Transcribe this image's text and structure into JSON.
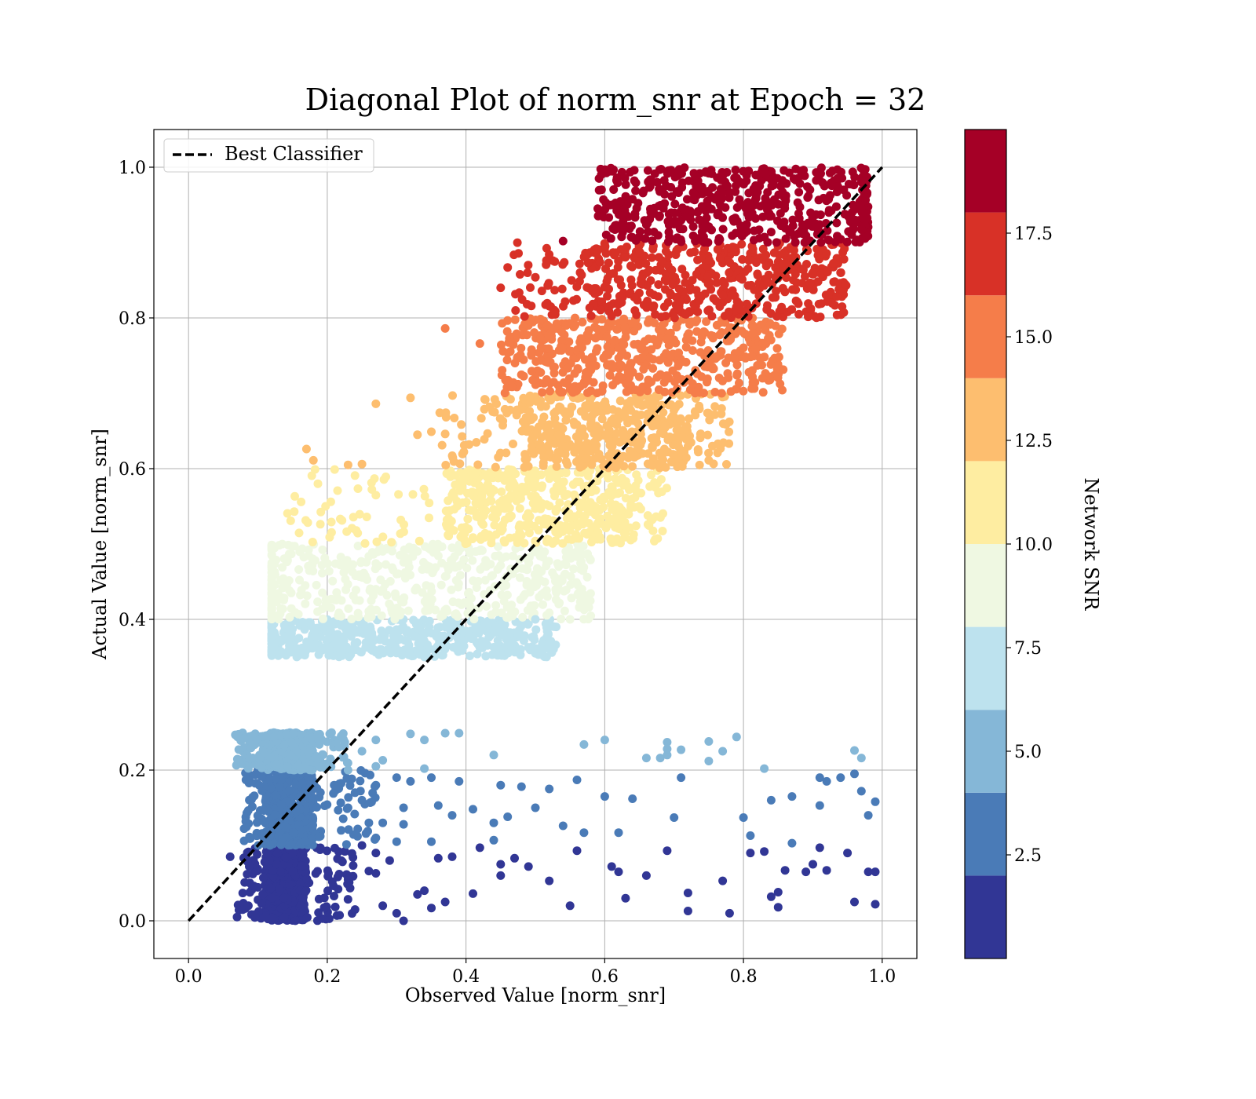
{
  "chart_data": {
    "type": "scatter",
    "title": "Diagonal Plot of norm_snr at Epoch = 32",
    "xlabel": "Observed Value [norm_snr]",
    "ylabel": "Actual Value [norm_snr]",
    "xlim": [
      -0.05,
      1.05
    ],
    "ylim": [
      -0.05,
      1.05
    ],
    "x_ticks": [
      0.0,
      0.2,
      0.4,
      0.6,
      0.8,
      1.0
    ],
    "y_ticks": [
      0.0,
      0.2,
      0.4,
      0.6,
      0.8,
      1.0
    ],
    "x_tick_labels": [
      "0.0",
      "0.2",
      "0.4",
      "0.6",
      "0.8",
      "1.0"
    ],
    "y_tick_labels": [
      "0.0",
      "0.2",
      "0.4",
      "0.6",
      "0.8",
      "1.0"
    ],
    "grid": true,
    "legend": {
      "placement": "upper-left",
      "entries": [
        "Best Classifier"
      ]
    },
    "reference_line": {
      "name": "Best Classifier",
      "x": [
        0.0,
        1.0
      ],
      "y": [
        0.0,
        1.0
      ],
      "style": "dashed",
      "color": "#000000"
    },
    "colorbar": {
      "label": "Network SNR",
      "range": [
        0,
        20
      ],
      "boundaries": [
        0,
        2,
        4,
        6,
        8,
        10,
        12,
        14,
        16,
        18,
        20
      ],
      "colors": [
        "#313695",
        "#4a7bb7",
        "#85b7d7",
        "#bde2ee",
        "#eff8e2",
        "#feeda1",
        "#fdbe6f",
        "#f57d4a",
        "#d83127",
        "#a50026"
      ],
      "ticks": [
        2.5,
        5.0,
        7.5,
        10.0,
        12.5,
        15.0,
        17.5
      ],
      "tick_labels": [
        "2.5",
        "5.0",
        "7.5",
        "10.0",
        "12.5",
        "15.0",
        "17.5"
      ]
    },
    "bands": [
      {
        "y_range": [
          0.0,
          0.1
        ],
        "x_core": [
          0.11,
          0.17
        ],
        "x_spread": [
          0.07,
          0.24
        ],
        "color": "#313695"
      },
      {
        "y_range": [
          0.1,
          0.2
        ],
        "x_core": [
          0.11,
          0.18
        ],
        "x_spread": [
          0.08,
          0.27
        ],
        "color": "#4a7bb7"
      },
      {
        "y_range": [
          0.2,
          0.25
        ],
        "x_core": [
          0.11,
          0.18
        ],
        "x_spread": [
          0.065,
          0.23
        ],
        "color": "#85b7d7"
      },
      {
        "y_range": [
          0.35,
          0.4
        ],
        "x_core": [
          0.12,
          0.48
        ],
        "x_spread": [
          0.12,
          0.53
        ],
        "color": "#bde2ee"
      },
      {
        "y_range": [
          0.4,
          0.5
        ],
        "x_core": [
          0.12,
          0.56
        ],
        "x_spread": [
          0.12,
          0.58
        ],
        "color": "#eff8e2"
      },
      {
        "y_range": [
          0.5,
          0.6
        ],
        "x_core": [
          0.37,
          0.64
        ],
        "x_spread": [
          0.13,
          0.69
        ],
        "color": "#feeda1"
      },
      {
        "y_range": [
          0.6,
          0.7
        ],
        "x_core": [
          0.48,
          0.72
        ],
        "x_spread": [
          0.36,
          0.78
        ],
        "color": "#fdbe6f"
      },
      {
        "y_range": [
          0.7,
          0.8
        ],
        "x_core": [
          0.5,
          0.82
        ],
        "x_spread": [
          0.45,
          0.86
        ],
        "color": "#f57d4a"
      },
      {
        "y_range": [
          0.8,
          0.9
        ],
        "x_core": [
          0.58,
          0.92
        ],
        "x_spread": [
          0.46,
          0.95
        ],
        "color": "#d83127"
      },
      {
        "y_range": [
          0.9,
          1.0
        ],
        "x_core": [
          0.63,
          0.97
        ],
        "x_spread": [
          0.59,
          0.98
        ],
        "color": "#a50026"
      }
    ],
    "scattered_points": [
      {
        "x": 0.3,
        "y": 0.19,
        "color": "#4a7bb7"
      },
      {
        "x": 0.32,
        "y": 0.185,
        "color": "#4a7bb7"
      },
      {
        "x": 0.35,
        "y": 0.19,
        "color": "#4a7bb7"
      },
      {
        "x": 0.39,
        "y": 0.185,
        "color": "#4a7bb7"
      },
      {
        "x": 0.45,
        "y": 0.18,
        "color": "#4a7bb7"
      },
      {
        "x": 0.48,
        "y": 0.178,
        "color": "#4a7bb7"
      },
      {
        "x": 0.52,
        "y": 0.175,
        "color": "#4a7bb7"
      },
      {
        "x": 0.56,
        "y": 0.187,
        "color": "#4a7bb7"
      },
      {
        "x": 0.6,
        "y": 0.165,
        "color": "#4a7bb7"
      },
      {
        "x": 0.64,
        "y": 0.162,
        "color": "#4a7bb7"
      },
      {
        "x": 0.71,
        "y": 0.19,
        "color": "#4a7bb7"
      },
      {
        "x": 0.84,
        "y": 0.16,
        "color": "#4a7bb7"
      },
      {
        "x": 0.87,
        "y": 0.165,
        "color": "#4a7bb7"
      },
      {
        "x": 0.91,
        "y": 0.19,
        "color": "#4a7bb7"
      },
      {
        "x": 0.92,
        "y": 0.185,
        "color": "#4a7bb7"
      },
      {
        "x": 0.94,
        "y": 0.19,
        "color": "#4a7bb7"
      },
      {
        "x": 0.96,
        "y": 0.195,
        "color": "#4a7bb7"
      },
      {
        "x": 0.97,
        "y": 0.172,
        "color": "#4a7bb7"
      },
      {
        "x": 0.99,
        "y": 0.158,
        "color": "#4a7bb7"
      },
      {
        "x": 0.98,
        "y": 0.14,
        "color": "#4a7bb7"
      },
      {
        "x": 0.91,
        "y": 0.153,
        "color": "#4a7bb7"
      },
      {
        "x": 0.8,
        "y": 0.137,
        "color": "#4a7bb7"
      },
      {
        "x": 0.81,
        "y": 0.113,
        "color": "#4a7bb7"
      },
      {
        "x": 0.87,
        "y": 0.103,
        "color": "#4a7bb7"
      },
      {
        "x": 0.7,
        "y": 0.137,
        "color": "#4a7bb7"
      },
      {
        "x": 0.62,
        "y": 0.117,
        "color": "#4a7bb7"
      },
      {
        "x": 0.57,
        "y": 0.117,
        "color": "#4a7bb7"
      },
      {
        "x": 0.54,
        "y": 0.126,
        "color": "#4a7bb7"
      },
      {
        "x": 0.5,
        "y": 0.15,
        "color": "#4a7bb7"
      },
      {
        "x": 0.46,
        "y": 0.138,
        "color": "#4a7bb7"
      },
      {
        "x": 0.44,
        "y": 0.13,
        "color": "#4a7bb7"
      },
      {
        "x": 0.44,
        "y": 0.107,
        "color": "#4a7bb7"
      },
      {
        "x": 0.41,
        "y": 0.148,
        "color": "#4a7bb7"
      },
      {
        "x": 0.38,
        "y": 0.14,
        "color": "#4a7bb7"
      },
      {
        "x": 0.36,
        "y": 0.153,
        "color": "#4a7bb7"
      },
      {
        "x": 0.35,
        "y": 0.105,
        "color": "#4a7bb7"
      },
      {
        "x": 0.31,
        "y": 0.15,
        "color": "#4a7bb7"
      },
      {
        "x": 0.31,
        "y": 0.128,
        "color": "#4a7bb7"
      },
      {
        "x": 0.3,
        "y": 0.105,
        "color": "#4a7bb7"
      },
      {
        "x": 0.28,
        "y": 0.13,
        "color": "#4a7bb7"
      },
      {
        "x": 0.26,
        "y": 0.13,
        "color": "#4a7bb7"
      },
      {
        "x": 0.25,
        "y": 0.16,
        "color": "#4a7bb7"
      },
      {
        "x": 0.24,
        "y": 0.17,
        "color": "#4a7bb7"
      },
      {
        "x": 0.23,
        "y": 0.15,
        "color": "#4a7bb7"
      },
      {
        "x": 0.22,
        "y": 0.12,
        "color": "#4a7bb7"
      },
      {
        "x": 0.21,
        "y": 0.18,
        "color": "#4a7bb7"
      },
      {
        "x": 0.27,
        "y": 0.18,
        "color": "#4a7bb7"
      },
      {
        "x": 0.27,
        "y": 0.11,
        "color": "#4a7bb7"
      },
      {
        "x": 0.36,
        "y": 0.083,
        "color": "#313695"
      },
      {
        "x": 0.38,
        "y": 0.085,
        "color": "#313695"
      },
      {
        "x": 0.42,
        "y": 0.097,
        "color": "#313695"
      },
      {
        "x": 0.45,
        "y": 0.075,
        "color": "#313695"
      },
      {
        "x": 0.45,
        "y": 0.06,
        "color": "#313695"
      },
      {
        "x": 0.47,
        "y": 0.083,
        "color": "#313695"
      },
      {
        "x": 0.49,
        "y": 0.072,
        "color": "#313695"
      },
      {
        "x": 0.52,
        "y": 0.053,
        "color": "#313695"
      },
      {
        "x": 0.56,
        "y": 0.093,
        "color": "#313695"
      },
      {
        "x": 0.55,
        "y": 0.02,
        "color": "#313695"
      },
      {
        "x": 0.61,
        "y": 0.072,
        "color": "#313695"
      },
      {
        "x": 0.62,
        "y": 0.065,
        "color": "#313695"
      },
      {
        "x": 0.63,
        "y": 0.03,
        "color": "#313695"
      },
      {
        "x": 0.66,
        "y": 0.06,
        "color": "#313695"
      },
      {
        "x": 0.69,
        "y": 0.093,
        "color": "#313695"
      },
      {
        "x": 0.72,
        "y": 0.037,
        "color": "#313695"
      },
      {
        "x": 0.72,
        "y": 0.013,
        "color": "#313695"
      },
      {
        "x": 0.77,
        "y": 0.053,
        "color": "#313695"
      },
      {
        "x": 0.78,
        "y": 0.01,
        "color": "#313695"
      },
      {
        "x": 0.81,
        "y": 0.09,
        "color": "#313695"
      },
      {
        "x": 0.83,
        "y": 0.092,
        "color": "#313695"
      },
      {
        "x": 0.84,
        "y": 0.032,
        "color": "#313695"
      },
      {
        "x": 0.85,
        "y": 0.038,
        "color": "#313695"
      },
      {
        "x": 0.85,
        "y": 0.018,
        "color": "#313695"
      },
      {
        "x": 0.86,
        "y": 0.067,
        "color": "#313695"
      },
      {
        "x": 0.89,
        "y": 0.065,
        "color": "#313695"
      },
      {
        "x": 0.9,
        "y": 0.075,
        "color": "#313695"
      },
      {
        "x": 0.91,
        "y": 0.097,
        "color": "#313695"
      },
      {
        "x": 0.92,
        "y": 0.067,
        "color": "#313695"
      },
      {
        "x": 0.95,
        "y": 0.09,
        "color": "#313695"
      },
      {
        "x": 0.96,
        "y": 0.025,
        "color": "#313695"
      },
      {
        "x": 0.98,
        "y": 0.065,
        "color": "#313695"
      },
      {
        "x": 0.99,
        "y": 0.065,
        "color": "#313695"
      },
      {
        "x": 0.99,
        "y": 0.022,
        "color": "#313695"
      },
      {
        "x": 0.41,
        "y": 0.036,
        "color": "#313695"
      },
      {
        "x": 0.37,
        "y": 0.025,
        "color": "#313695"
      },
      {
        "x": 0.35,
        "y": 0.017,
        "color": "#313695"
      },
      {
        "x": 0.34,
        "y": 0.04,
        "color": "#313695"
      },
      {
        "x": 0.33,
        "y": 0.035,
        "color": "#313695"
      },
      {
        "x": 0.31,
        "y": 0.0,
        "color": "#313695"
      },
      {
        "x": 0.3,
        "y": 0.01,
        "color": "#313695"
      },
      {
        "x": 0.29,
        "y": 0.08,
        "color": "#313695"
      },
      {
        "x": 0.28,
        "y": 0.02,
        "color": "#313695"
      },
      {
        "x": 0.27,
        "y": 0.063,
        "color": "#313695"
      },
      {
        "x": 0.27,
        "y": 0.09,
        "color": "#313695"
      },
      {
        "x": 0.26,
        "y": 0.066,
        "color": "#313695"
      },
      {
        "x": 0.25,
        "y": 0.1,
        "color": "#313695"
      },
      {
        "x": 0.24,
        "y": 0.015,
        "color": "#313695"
      },
      {
        "x": 0.23,
        "y": 0.055,
        "color": "#313695"
      },
      {
        "x": 0.22,
        "y": 0.08,
        "color": "#313695"
      },
      {
        "x": 0.06,
        "y": 0.085,
        "color": "#313695"
      },
      {
        "x": 0.07,
        "y": 0.005,
        "color": "#313695"
      },
      {
        "x": 0.07,
        "y": 0.245,
        "color": "#85b7d7"
      },
      {
        "x": 0.22,
        "y": 0.245,
        "color": "#85b7d7"
      },
      {
        "x": 0.23,
        "y": 0.2,
        "color": "#85b7d7"
      },
      {
        "x": 0.25,
        "y": 0.225,
        "color": "#85b7d7"
      },
      {
        "x": 0.27,
        "y": 0.24,
        "color": "#85b7d7"
      },
      {
        "x": 0.27,
        "y": 0.205,
        "color": "#85b7d7"
      },
      {
        "x": 0.28,
        "y": 0.213,
        "color": "#85b7d7"
      },
      {
        "x": 0.32,
        "y": 0.248,
        "color": "#85b7d7"
      },
      {
        "x": 0.34,
        "y": 0.202,
        "color": "#85b7d7"
      },
      {
        "x": 0.34,
        "y": 0.24,
        "color": "#85b7d7"
      },
      {
        "x": 0.37,
        "y": 0.249,
        "color": "#85b7d7"
      },
      {
        "x": 0.39,
        "y": 0.249,
        "color": "#85b7d7"
      },
      {
        "x": 0.44,
        "y": 0.22,
        "color": "#85b7d7"
      },
      {
        "x": 0.57,
        "y": 0.234,
        "color": "#85b7d7"
      },
      {
        "x": 0.6,
        "y": 0.24,
        "color": "#85b7d7"
      },
      {
        "x": 0.66,
        "y": 0.216,
        "color": "#85b7d7"
      },
      {
        "x": 0.68,
        "y": 0.216,
        "color": "#85b7d7"
      },
      {
        "x": 0.69,
        "y": 0.22,
        "color": "#85b7d7"
      },
      {
        "x": 0.69,
        "y": 0.237,
        "color": "#85b7d7"
      },
      {
        "x": 0.69,
        "y": 0.228,
        "color": "#85b7d7"
      },
      {
        "x": 0.71,
        "y": 0.227,
        "color": "#85b7d7"
      },
      {
        "x": 0.75,
        "y": 0.212,
        "color": "#85b7d7"
      },
      {
        "x": 0.75,
        "y": 0.238,
        "color": "#85b7d7"
      },
      {
        "x": 0.77,
        "y": 0.225,
        "color": "#85b7d7"
      },
      {
        "x": 0.79,
        "y": 0.244,
        "color": "#85b7d7"
      },
      {
        "x": 0.83,
        "y": 0.202,
        "color": "#85b7d7"
      },
      {
        "x": 0.96,
        "y": 0.226,
        "color": "#85b7d7"
      },
      {
        "x": 0.97,
        "y": 0.216,
        "color": "#85b7d7"
      },
      {
        "x": 0.37,
        "y": 0.786,
        "color": "#f57d4a"
      },
      {
        "x": 0.42,
        "y": 0.766,
        "color": "#f57d4a"
      },
      {
        "x": 0.45,
        "y": 0.84,
        "color": "#d83127"
      },
      {
        "x": 0.46,
        "y": 0.867,
        "color": "#d83127"
      },
      {
        "x": 0.5,
        "y": 0.854,
        "color": "#d83127"
      },
      {
        "x": 0.27,
        "y": 0.686,
        "color": "#fdbe6f"
      },
      {
        "x": 0.32,
        "y": 0.694,
        "color": "#fdbe6f"
      },
      {
        "x": 0.33,
        "y": 0.645,
        "color": "#fdbe6f"
      },
      {
        "x": 0.35,
        "y": 0.649,
        "color": "#fdbe6f"
      },
      {
        "x": 0.37,
        "y": 0.646,
        "color": "#fdbe6f"
      },
      {
        "x": 0.23,
        "y": 0.605,
        "color": "#fdbe6f"
      },
      {
        "x": 0.25,
        "y": 0.606,
        "color": "#fdbe6f"
      },
      {
        "x": 0.17,
        "y": 0.626,
        "color": "#fdbe6f"
      },
      {
        "x": 0.18,
        "y": 0.611,
        "color": "#fdbe6f"
      },
      {
        "x": 0.75,
        "y": 0.611,
        "color": "#fdbe6f"
      },
      {
        "x": 0.85,
        "y": 0.736,
        "color": "#f57d4a"
      },
      {
        "x": 0.82,
        "y": 0.737,
        "color": "#f57d4a"
      },
      {
        "x": 0.54,
        "y": 0.902,
        "color": "#a50026"
      },
      {
        "x": 0.59,
        "y": 0.945,
        "color": "#a50026"
      },
      {
        "x": 0.61,
        "y": 0.95,
        "color": "#a50026"
      },
      {
        "x": 0.97,
        "y": 0.946,
        "color": "#a50026"
      },
      {
        "x": 0.94,
        "y": 0.86,
        "color": "#d83127"
      },
      {
        "x": 0.5,
        "y": 0.4,
        "color": "#bde2ee"
      },
      {
        "x": 0.5,
        "y": 0.355,
        "color": "#bde2ee"
      },
      {
        "x": 0.52,
        "y": 0.37,
        "color": "#bde2ee"
      },
      {
        "x": 0.53,
        "y": 0.39,
        "color": "#bde2ee"
      },
      {
        "x": 0.56,
        "y": 0.49,
        "color": "#eff8e2"
      },
      {
        "x": 0.55,
        "y": 0.4,
        "color": "#eff8e2"
      }
    ]
  }
}
